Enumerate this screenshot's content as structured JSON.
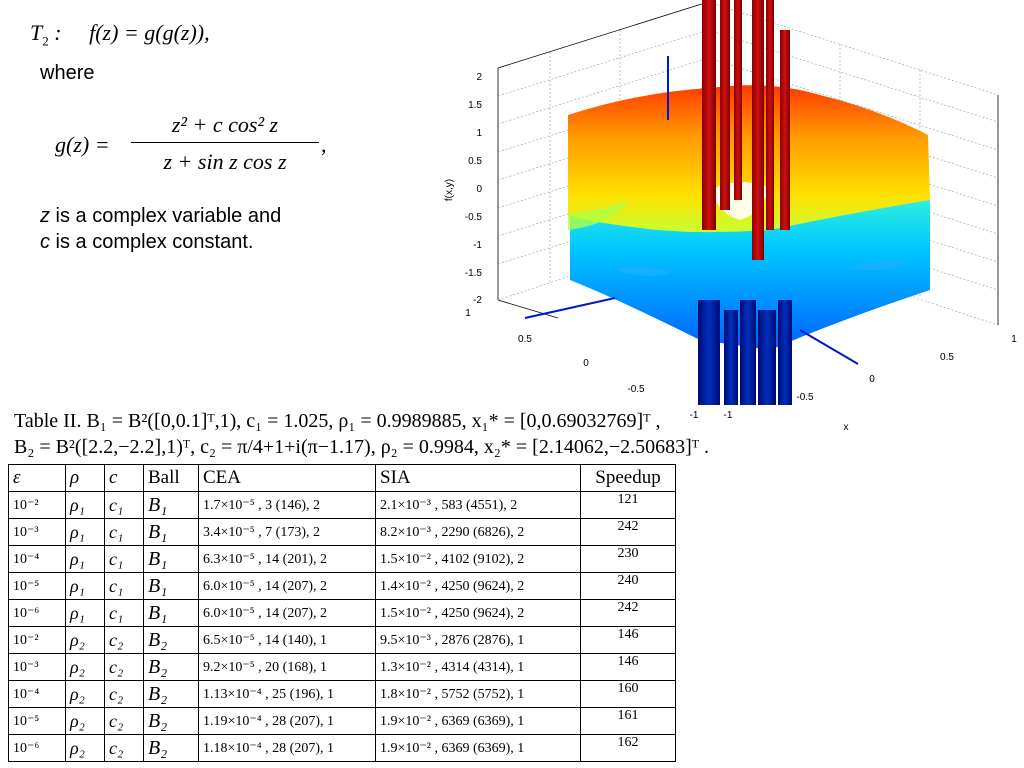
{
  "formula": {
    "t2_label": "T",
    "t2_sub": "2",
    "t2_rest": " :     f(z) = g(g(z)),",
    "where": "where",
    "g_lhs": "g(z) =",
    "g_num": "z² + c cos² z",
    "g_den": "z + sin z cos z",
    "g_comma": ",",
    "desc_z_var": "z",
    "desc_line1": " is a complex variable and",
    "desc_c_var": "c",
    "desc_line2": " is a complex constant."
  },
  "plot": {
    "zlabel": "f(x,y)",
    "xlabel": "x",
    "z_ticks": [
      "2",
      "1.5",
      "1",
      "0.5",
      "0",
      "-0.5",
      "-1",
      "-1.5",
      "-2"
    ],
    "y_ticks": [
      "1",
      "0.5",
      "0",
      "-0.5",
      "-1"
    ],
    "x_ticks": [
      "1",
      "0.5",
      "0",
      "-0.5",
      "-1"
    ]
  },
  "table": {
    "caption_line1": "Table II.  B₁ = B²([0,0.1]ᵀ,1), c₁ = 1.025, ρ₁ = 0.9989885, x₁* = [0,0.69032769]ᵀ ,",
    "caption_line2": "B₂ = B²([2.2,−2.2],1)ᵀ, c₂ = π/4+1+i(π−1.17), ρ₂ = 0.9984, x₂* = [2.14062,−2.50683]ᵀ .",
    "headers": [
      "ε",
      "ρ",
      "c",
      "Ball",
      "CEA",
      "SIA",
      "Speedup"
    ],
    "rows": [
      {
        "eps": "10⁻²",
        "rho": "ρ₁",
        "c": "c₁",
        "ball": "B₁",
        "cea": "1.7×10⁻⁵ , 3 (146), 2",
        "sia": "2.1×10⁻³ , 583 (4551), 2",
        "speedup": "121"
      },
      {
        "eps": "10⁻³",
        "rho": "ρ₁",
        "c": "c₁",
        "ball": "B₁",
        "cea": "3.4×10⁻⁵ , 7 (173), 2",
        "sia": "8.2×10⁻³ , 2290 (6826), 2",
        "speedup": "242"
      },
      {
        "eps": "10⁻⁴",
        "rho": "ρ₁",
        "c": "c₁",
        "ball": "B₁",
        "cea": "6.3×10⁻⁵ , 14 (201), 2",
        "sia": "1.5×10⁻² , 4102 (9102), 2",
        "speedup": "230"
      },
      {
        "eps": "10⁻⁵",
        "rho": "ρ₁",
        "c": "c₁",
        "ball": "B₁",
        "cea": "6.0×10⁻⁵ , 14 (207), 2",
        "sia": "1.4×10⁻² , 4250 (9624), 2",
        "speedup": "240"
      },
      {
        "eps": "10⁻⁶",
        "rho": "ρ₁",
        "c": "c₁",
        "ball": "B₁",
        "cea": "6.0×10⁻⁵ , 14 (207), 2",
        "sia": "1.5×10⁻² , 4250 (9624), 2",
        "speedup": "242"
      },
      {
        "eps": "10⁻²",
        "rho": "ρ₂",
        "c": "c₂",
        "ball": "B₂",
        "cea": "6.5×10⁻⁵ , 14 (140), 1",
        "sia": "9.5×10⁻³ , 2876 (2876), 1",
        "speedup": "146"
      },
      {
        "eps": "10⁻³",
        "rho": "ρ₂",
        "c": "c₂",
        "ball": "B₂",
        "cea": "9.2×10⁻⁵ , 20 (168), 1",
        "sia": "1.3×10⁻² , 4314 (4314), 1",
        "speedup": "146"
      },
      {
        "eps": "10⁻⁴",
        "rho": "ρ₂",
        "c": "c₂",
        "ball": "B₂",
        "cea": "1.13×10⁻⁴ , 25 (196), 1",
        "sia": "1.8×10⁻² , 5752 (5752), 1",
        "speedup": "160"
      },
      {
        "eps": "10⁻⁵",
        "rho": "ρ₂",
        "c": "c₂",
        "ball": "B₂",
        "cea": "1.19×10⁻⁴ , 28 (207), 1",
        "sia": "1.9×10⁻² , 6369 (6369), 1",
        "speedup": "161"
      },
      {
        "eps": "10⁻⁶",
        "rho": "ρ₂",
        "c": "c₂",
        "ball": "B₂",
        "cea": "1.18×10⁻⁴ , 28 (207), 1",
        "sia": "1.9×10⁻² , 6369 (6369), 1",
        "speedup": "162"
      }
    ]
  }
}
